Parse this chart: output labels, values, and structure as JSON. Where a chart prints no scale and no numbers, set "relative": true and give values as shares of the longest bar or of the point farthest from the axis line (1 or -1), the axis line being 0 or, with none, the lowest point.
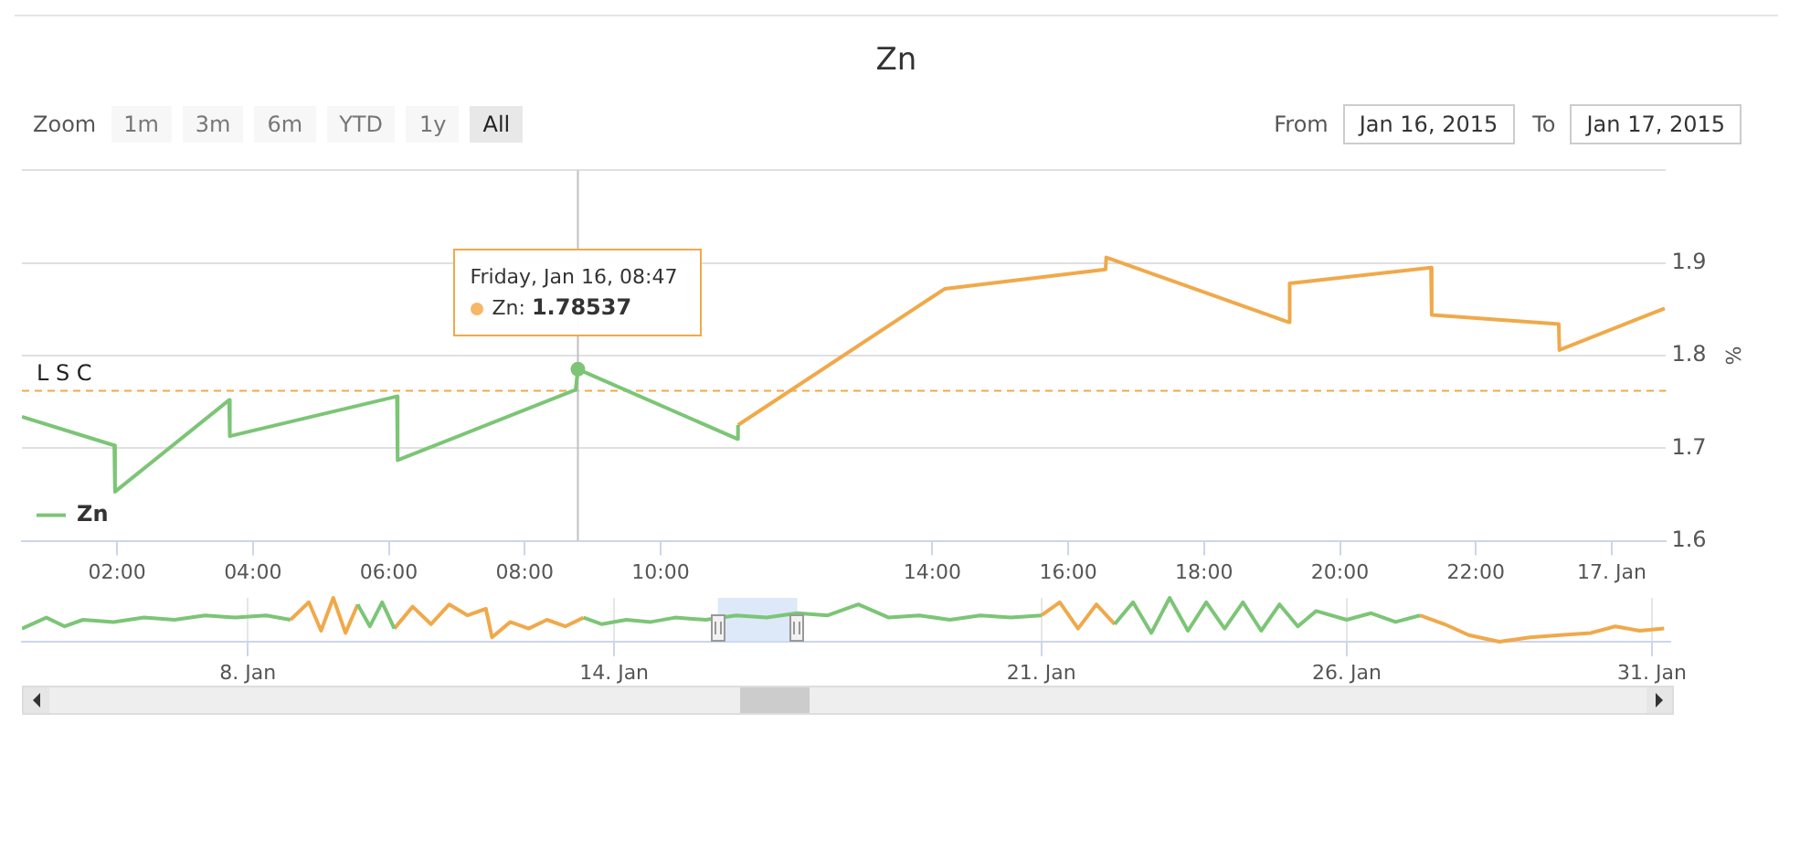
{
  "chart_data": [
    {
      "type": "line",
      "title": "Zn",
      "ylabel": "%",
      "x": [
        0.6,
        1.96,
        1.97,
        3.65,
        3.66,
        6.12,
        6.13,
        8.75,
        8.783,
        11.13,
        11.14,
        14.18,
        16.55,
        16.56,
        19.25,
        19.26,
        21.34,
        21.35,
        23.22,
        23.23,
        24.78
      ],
      "xlim": [
        0.6,
        24.8
      ],
      "xticks": [
        {
          "value": 2,
          "label": "02:00"
        },
        {
          "value": 4,
          "label": "04:00"
        },
        {
          "value": 6,
          "label": "06:00"
        },
        {
          "value": 8,
          "label": "08:00"
        },
        {
          "value": 10,
          "label": "10:00"
        },
        {
          "value": 14,
          "label": "14:00"
        },
        {
          "value": 16,
          "label": "16:00"
        },
        {
          "value": 18,
          "label": "18:00"
        },
        {
          "value": 20,
          "label": "20:00"
        },
        {
          "value": 22,
          "label": "22:00"
        },
        {
          "value": 24,
          "label": "17. Jan"
        }
      ],
      "ylim": [
        1.6,
        2.0
      ],
      "yticks": [
        1.6,
        1.7,
        1.8,
        1.9,
        {
          "value": 2.0,
          "label": null
        }
      ],
      "series": [
        {
          "name": "Zn",
          "color": "#7cc576",
          "values": [
            1.734,
            1.703,
            1.653,
            1.752,
            1.713,
            1.756,
            1.687,
            1.763,
            1.78537,
            1.71,
            1.725,
            null,
            null,
            null,
            null,
            null,
            null,
            null,
            null,
            null,
            null
          ]
        },
        {
          "color": "#f0a94a",
          "values": [
            null,
            null,
            null,
            null,
            null,
            null,
            null,
            null,
            null,
            null,
            1.725,
            1.872,
            1.893,
            1.906,
            1.836,
            1.878,
            1.895,
            1.844,
            1.834,
            1.806,
            1.851
          ]
        }
      ],
      "grid": "y",
      "legend": "bottom left",
      "ref_lines": [
        {
          "axis": "y",
          "value": 1.762,
          "label": "L S C",
          "color": "#f0a94a",
          "line_style": "dashed"
        },
        {
          "axis": "x",
          "value": 8.783,
          "color": "#c0c0c0",
          "line_style": "solid"
        }
      ],
      "annotations": [
        {
          "text": "Friday, Jan 16, 08:47\nZn: 1.78537",
          "x": 8.783,
          "y": 1.78537
        },
        "Zoom",
        "1m",
        "3m",
        "6m",
        "YTD",
        "1y",
        "All",
        "From",
        "Jan 16, 2015",
        "To",
        "Jan 17, 2015"
      ]
    },
    {
      "type": "line",
      "relative": true,
      "x": [
        "2015-01-04T07:12",
        "2015-01-04T16:48",
        "2015-01-05T00:00",
        "2015-01-05T07:12",
        "2015-01-05T19:12",
        "2015-01-06T07:12",
        "2015-01-06T19:12",
        "2015-01-07T07:12",
        "2015-01-07T19:12",
        "2015-01-08T07:12",
        "2015-01-08T16:48",
        "2015-01-09T00:00",
        "2015-01-09T04:48",
        "2015-01-09T09:36",
        "2015-01-09T14:24",
        "2015-01-09T19:12",
        "2015-01-10T00:00",
        "2015-01-10T04:48",
        "2015-01-10T09:36",
        "2015-01-10T16:48",
        "2015-01-11T00:00",
        "2015-01-11T07:12",
        "2015-01-11T14:24",
        "2015-01-11T21:36",
        "2015-01-12T00:00",
        "2015-01-12T07:12",
        "2015-01-12T14:24",
        "2015-01-12T21:36",
        "2015-01-13T04:48",
        "2015-01-13T12:00",
        "2015-01-13T19:12",
        "2015-01-14T04:48",
        "2015-01-14T14:24",
        "2015-01-15T00:00",
        "2015-01-15T12:00",
        "2015-01-16T00:00",
        "2015-01-16T12:00",
        "2015-01-17T00:00",
        "2015-01-17T12:00",
        "2015-01-18T00:00",
        "2015-01-18T12:00",
        "2015-01-19T00:00",
        "2015-01-19T12:00",
        "2015-01-20T00:00",
        "2015-01-20T12:00",
        "2015-01-21T00:00",
        "2015-01-21T07:12",
        "2015-01-21T14:24",
        "2015-01-21T21:36",
        "2015-01-22T04:48",
        "2015-01-22T12:00",
        "2015-01-22T19:12",
        "2015-01-23T02:24",
        "2015-01-23T09:36",
        "2015-01-23T16:48",
        "2015-01-24T00:00",
        "2015-01-24T07:12",
        "2015-01-24T14:24",
        "2015-01-24T21:36",
        "2015-01-25T04:48",
        "2015-01-25T12:00",
        "2015-01-26T00:00",
        "2015-01-26T09:36",
        "2015-01-26T19:12",
        "2015-01-27T04:48",
        "2015-01-27T14:24",
        "2015-01-28T00:00",
        "2015-01-28T12:00",
        "2015-01-29T00:00",
        "2015-01-29T12:00",
        "2015-01-30T00:00",
        "2015-01-30T09:36",
        "2015-01-30T19:12",
        "2015-01-31T04:48"
      ],
      "xlim": [
        "2015-01-04T07:12",
        "2015-01-31T07:12"
      ],
      "xticks": [
        {
          "value": "2015-01-08",
          "label": "8. Jan"
        },
        {
          "value": "2015-01-14",
          "label": "14. Jan"
        },
        {
          "value": "2015-01-21",
          "label": "21. Jan"
        },
        {
          "value": "2015-01-26",
          "label": "26. Jan"
        },
        {
          "value": "2015-01-31",
          "label": "31. Jan"
        }
      ],
      "series": [
        {
          "color": "#7cc576",
          "values": [
            0.3,
            0.55,
            0.35,
            0.5,
            0.45,
            0.55,
            0.5,
            0.6,
            0.55,
            0.6,
            0.5,
            null,
            null,
            null,
            null,
            0.85,
            0.35,
            0.9,
            0.3,
            null,
            null,
            null,
            null,
            null,
            null,
            null,
            null,
            null,
            null,
            0.55,
            0.4,
            0.5,
            0.45,
            0.55,
            0.5,
            0.6,
            0.55,
            0.65,
            0.6,
            0.85,
            0.55,
            0.6,
            0.5,
            0.6,
            0.55,
            0.6,
            null,
            null,
            null,
            0.4,
            0.9,
            0.2,
            1,
            0.25,
            0.9,
            0.3,
            0.9,
            0.25,
            0.85,
            0.35,
            0.7,
            0.5,
            0.65,
            0.45,
            0.6,
            null,
            null,
            null,
            null,
            null,
            null,
            null,
            null,
            null
          ]
        },
        {
          "color": "#f0a94a",
          "values": [
            null,
            null,
            null,
            null,
            null,
            null,
            null,
            null,
            null,
            null,
            0.5,
            0.9,
            0.25,
            1,
            0.2,
            0.85,
            null,
            null,
            0.3,
            0.8,
            0.4,
            0.85,
            0.6,
            0.75,
            0.1,
            0.45,
            0.3,
            0.5,
            0.35,
            0.55,
            null,
            null,
            null,
            null,
            null,
            null,
            null,
            null,
            null,
            null,
            null,
            null,
            null,
            null,
            null,
            0.6,
            0.9,
            0.3,
            0.85,
            0.4,
            null,
            null,
            null,
            null,
            null,
            null,
            null,
            null,
            null,
            null,
            null,
            null,
            null,
            null,
            0.6,
            0.4,
            0.15,
            0,
            0.1,
            0.15,
            0.2,
            0.35,
            0.25,
            0.3
          ]
        }
      ],
      "grid": "x",
      "bands": [
        {
          "axis": "x",
          "from": "2015-01-15T16:48",
          "to": "2015-01-17T00:00",
          "color": "#cfe0f5"
        }
      ]
    }
  ]
}
